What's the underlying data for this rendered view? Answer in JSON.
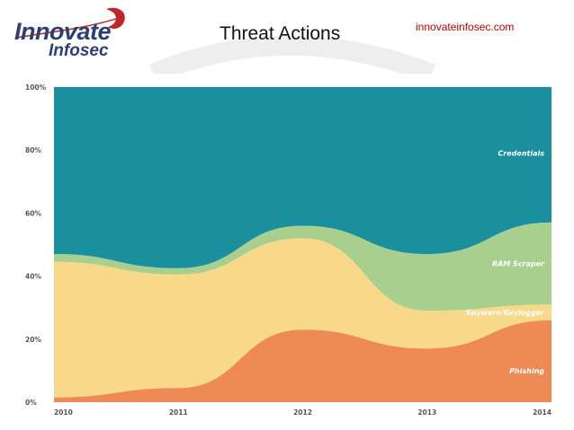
{
  "header": {
    "logo": {
      "line1": "Innovate",
      "line2": "Infosec"
    },
    "title": "Threat Actions",
    "website": "innovateinfosec.com"
  },
  "chart_data": {
    "type": "area",
    "stacked": true,
    "normalized_percent": true,
    "title": "Threat Actions",
    "x": [
      "2010",
      "2011",
      "2012",
      "2013",
      "2014"
    ],
    "ylim": [
      0,
      100
    ],
    "y_ticks": [
      "0%",
      "20%",
      "40%",
      "60%",
      "80%",
      "100%"
    ],
    "grid": false,
    "legend": "inline labels at right",
    "series": [
      {
        "name": "Phishing",
        "values": [
          1.5,
          4.5,
          23,
          17,
          26
        ],
        "color": "#ee8a55"
      },
      {
        "name": "Spyware/Keylogger",
        "values": [
          43,
          36,
          29,
          12,
          5
        ],
        "color": "#f8d98a"
      },
      {
        "name": "RAM Scraper",
        "values": [
          2.5,
          2,
          4,
          18,
          26
        ],
        "color": "#a8cf8e"
      },
      {
        "name": "Credentials",
        "values": [
          53,
          57.5,
          44,
          53,
          43
        ],
        "color": "#1a8f9d"
      }
    ]
  }
}
